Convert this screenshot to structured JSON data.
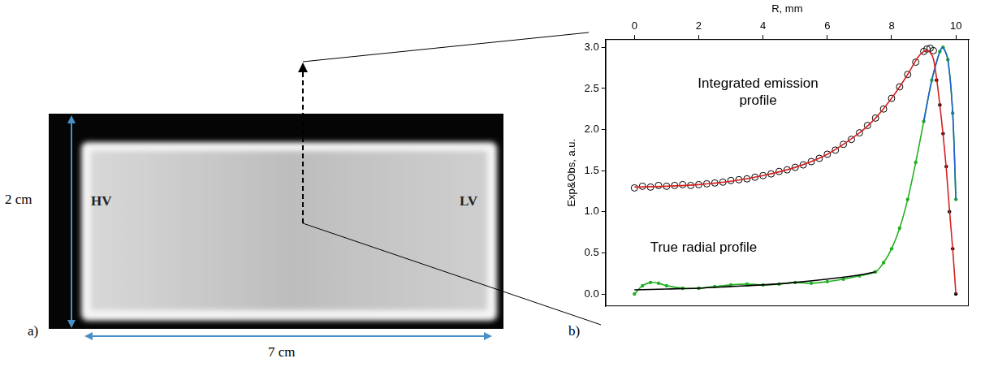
{
  "panel_a": {
    "label": "a)",
    "height": "2 cm",
    "width": "7 cm",
    "left_electrode": "HV",
    "right_electrode": "LV"
  },
  "chart_data": {
    "type": "scatter",
    "panel_label": "b)",
    "x_label": "R, mm",
    "y_label": "Exp&Obs, a.u.",
    "annotations": [
      "Integrated emission profile",
      "True radial profile"
    ],
    "xlim": [
      -0.9,
      10.4
    ],
    "xticks": [
      0,
      2,
      4,
      6,
      8,
      10
    ],
    "ylim": [
      -0.15,
      3.1
    ],
    "yticks": [
      {
        "value": 0,
        "label": "0.0"
      },
      {
        "value": 0.5,
        "label": "0.5"
      },
      {
        "value": 1,
        "label": "1.0"
      },
      {
        "value": 1.5,
        "label": "1.5"
      },
      {
        "value": 2,
        "label": "2.0"
      },
      {
        "value": 2.5,
        "label": "2.5"
      },
      {
        "value": 3,
        "label": "3.0"
      }
    ],
    "grid": false,
    "series": [
      {
        "color": "#d62020",
        "marker": "none",
        "line_style": "solid",
        "x": [
          0,
          1,
          2,
          3,
          4,
          5,
          6,
          7,
          7.5,
          8,
          8.5,
          8.8,
          9.0,
          9.1,
          9.2,
          9.3,
          9.4,
          9.5,
          9.6,
          9.7,
          9.8,
          9.9,
          10.0
        ],
        "values": [
          1.3,
          1.31,
          1.33,
          1.37,
          1.44,
          1.54,
          1.7,
          1.96,
          2.14,
          2.38,
          2.67,
          2.87,
          2.95,
          2.96,
          2.94,
          2.86,
          2.62,
          2.3,
          1.94,
          1.53,
          1.02,
          0.55,
          0.0
        ]
      },
      {
        "color": "#000000",
        "marker": "circle_open",
        "line_style": "none",
        "x": [
          0,
          0.25,
          0.5,
          0.75,
          1,
          1.25,
          1.5,
          1.75,
          2,
          2.25,
          2.5,
          2.75,
          3,
          3.25,
          3.5,
          3.75,
          4,
          4.25,
          4.5,
          4.75,
          5,
          5.25,
          5.5,
          5.75,
          6,
          6.25,
          6.5,
          6.75,
          7,
          7.25,
          7.5,
          7.75,
          8,
          8.25,
          8.5,
          8.75,
          9,
          9.1,
          9.2,
          9.3
        ],
        "values": [
          1.29,
          1.31,
          1.3,
          1.32,
          1.31,
          1.32,
          1.33,
          1.32,
          1.33,
          1.34,
          1.35,
          1.36,
          1.38,
          1.39,
          1.4,
          1.42,
          1.44,
          1.46,
          1.49,
          1.51,
          1.54,
          1.57,
          1.61,
          1.65,
          1.7,
          1.75,
          1.82,
          1.88,
          1.96,
          2.05,
          2.14,
          2.25,
          2.38,
          2.52,
          2.67,
          2.82,
          2.95,
          2.98,
          2.99,
          2.96
        ]
      },
      {
        "color": "#000000",
        "marker": "dot",
        "line_style": "none",
        "x": [
          9.4,
          9.5,
          9.6,
          9.7,
          9.8,
          9.9,
          10.0
        ],
        "values": [
          2.6,
          2.3,
          1.95,
          1.55,
          1.0,
          0.55,
          0.0
        ]
      },
      {
        "color": "#000000",
        "marker": "none",
        "line_style": "solid",
        "x": [
          0,
          1,
          2,
          3,
          4,
          5,
          6,
          7,
          7.5
        ],
        "values": [
          0.05,
          0.06,
          0.07,
          0.09,
          0.11,
          0.14,
          0.18,
          0.23,
          0.27
        ]
      },
      {
        "color": "#2060d0",
        "marker": "none",
        "line_style": "solid",
        "x": [
          9.0,
          9.25,
          9.5,
          9.6,
          9.75,
          9.9,
          10.0
        ],
        "values": [
          2.1,
          2.6,
          2.95,
          3.0,
          2.85,
          2.2,
          1.15
        ]
      },
      {
        "color": "#22b022",
        "marker": "dot",
        "line_style": "solid",
        "x": [
          0,
          0.25,
          0.5,
          0.75,
          1,
          1.5,
          2,
          2.5,
          3,
          3.5,
          4,
          4.5,
          5,
          5.5,
          6,
          6.5,
          7,
          7.5,
          7.75,
          8,
          8.25,
          8.5,
          8.75,
          9,
          9.25,
          9.5,
          9.6,
          9.75,
          9.9,
          10.0
        ],
        "values": [
          0.0,
          0.1,
          0.14,
          0.13,
          0.1,
          0.07,
          0.07,
          0.09,
          0.11,
          0.12,
          0.11,
          0.12,
          0.14,
          0.13,
          0.15,
          0.18,
          0.22,
          0.27,
          0.38,
          0.55,
          0.8,
          1.15,
          1.6,
          2.1,
          2.6,
          2.95,
          3.0,
          2.85,
          2.2,
          1.15
        ]
      }
    ]
  }
}
